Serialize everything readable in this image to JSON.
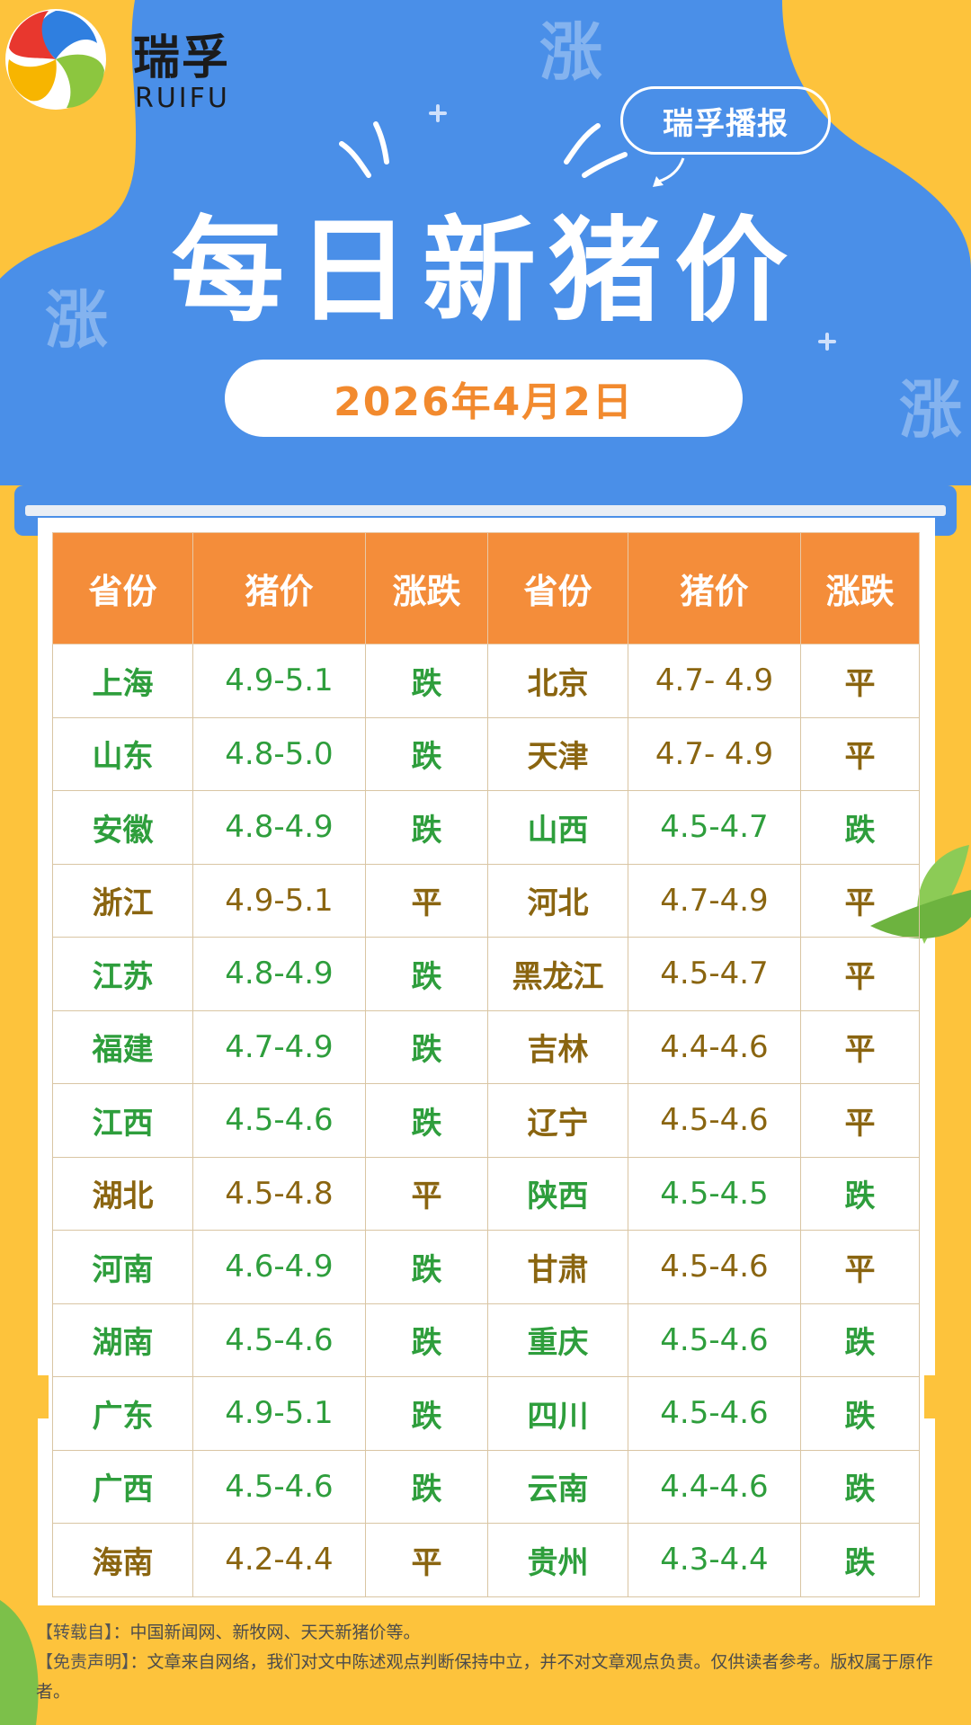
{
  "brand": {
    "name_cn": "瑞孚",
    "name_en": "RUIFU"
  },
  "header": {
    "bubble": "瑞孚播报",
    "title": "每日新猪价",
    "date": "2026年4月2日",
    "deco": "涨"
  },
  "colors": {
    "blue": "#4A8FE8",
    "yellow": "#FDC33C",
    "orange": "#F48D3A",
    "green": "#2E9E3C",
    "brown": "#8A6510"
  },
  "table": {
    "headers": [
      "省份",
      "猪价",
      "涨跌",
      "省份",
      "猪价",
      "涨跌"
    ],
    "rows": [
      [
        {
          "t": "上海",
          "c": "green"
        },
        {
          "t": "4.9-5.1",
          "c": "green"
        },
        {
          "t": "跌",
          "c": "green"
        },
        {
          "t": "北京",
          "c": "brown"
        },
        {
          "t": "4.7- 4.9",
          "c": "brown"
        },
        {
          "t": "平",
          "c": "brown"
        }
      ],
      [
        {
          "t": "山东",
          "c": "green"
        },
        {
          "t": "4.8-5.0",
          "c": "green"
        },
        {
          "t": "跌",
          "c": "green"
        },
        {
          "t": "天津",
          "c": "brown"
        },
        {
          "t": "4.7- 4.9",
          "c": "brown"
        },
        {
          "t": "平",
          "c": "brown"
        }
      ],
      [
        {
          "t": "安徽",
          "c": "green"
        },
        {
          "t": "4.8-4.9",
          "c": "green"
        },
        {
          "t": "跌",
          "c": "green"
        },
        {
          "t": "山西",
          "c": "green"
        },
        {
          "t": "4.5-4.7",
          "c": "green"
        },
        {
          "t": "跌",
          "c": "green"
        }
      ],
      [
        {
          "t": "浙江",
          "c": "brown"
        },
        {
          "t": "4.9-5.1",
          "c": "brown"
        },
        {
          "t": "平",
          "c": "brown"
        },
        {
          "t": "河北",
          "c": "brown"
        },
        {
          "t": "4.7-4.9",
          "c": "brown"
        },
        {
          "t": "平",
          "c": "brown"
        }
      ],
      [
        {
          "t": "江苏",
          "c": "green"
        },
        {
          "t": "4.8-4.9",
          "c": "green"
        },
        {
          "t": "跌",
          "c": "green"
        },
        {
          "t": "黑龙江",
          "c": "brown"
        },
        {
          "t": "4.5-4.7",
          "c": "brown"
        },
        {
          "t": "平",
          "c": "brown"
        }
      ],
      [
        {
          "t": "福建",
          "c": "green"
        },
        {
          "t": "4.7-4.9",
          "c": "green"
        },
        {
          "t": "跌",
          "c": "green"
        },
        {
          "t": "吉林",
          "c": "brown"
        },
        {
          "t": "4.4-4.6",
          "c": "brown"
        },
        {
          "t": "平",
          "c": "brown"
        }
      ],
      [
        {
          "t": "江西",
          "c": "green"
        },
        {
          "t": "4.5-4.6",
          "c": "green"
        },
        {
          "t": "跌",
          "c": "green"
        },
        {
          "t": "辽宁",
          "c": "brown"
        },
        {
          "t": "4.5-4.6",
          "c": "brown"
        },
        {
          "t": "平",
          "c": "brown"
        }
      ],
      [
        {
          "t": "湖北",
          "c": "brown"
        },
        {
          "t": "4.5-4.8",
          "c": "brown"
        },
        {
          "t": "平",
          "c": "brown"
        },
        {
          "t": "陕西",
          "c": "green"
        },
        {
          "t": "4.5-4.5",
          "c": "green"
        },
        {
          "t": "跌",
          "c": "green"
        }
      ],
      [
        {
          "t": "河南",
          "c": "green"
        },
        {
          "t": "4.6-4.9",
          "c": "green"
        },
        {
          "t": "跌",
          "c": "green"
        },
        {
          "t": "甘肃",
          "c": "brown"
        },
        {
          "t": "4.5-4.6",
          "c": "brown"
        },
        {
          "t": "平",
          "c": "brown"
        }
      ],
      [
        {
          "t": "湖南",
          "c": "green"
        },
        {
          "t": "4.5-4.6",
          "c": "green"
        },
        {
          "t": "跌",
          "c": "green"
        },
        {
          "t": "重庆",
          "c": "green"
        },
        {
          "t": "4.5-4.6",
          "c": "green"
        },
        {
          "t": "跌",
          "c": "green"
        }
      ],
      [
        {
          "t": "广东",
          "c": "green"
        },
        {
          "t": "4.9-5.1",
          "c": "green"
        },
        {
          "t": "跌",
          "c": "green"
        },
        {
          "t": "四川",
          "c": "green"
        },
        {
          "t": "4.5-4.6",
          "c": "green"
        },
        {
          "t": "跌",
          "c": "green"
        }
      ],
      [
        {
          "t": "广西",
          "c": "green"
        },
        {
          "t": "4.5-4.6",
          "c": "green"
        },
        {
          "t": "跌",
          "c": "green"
        },
        {
          "t": "云南",
          "c": "green"
        },
        {
          "t": "4.4-4.6",
          "c": "green"
        },
        {
          "t": "跌",
          "c": "green"
        }
      ],
      [
        {
          "t": "海南",
          "c": "brown"
        },
        {
          "t": "4.2-4.4",
          "c": "brown"
        },
        {
          "t": "平",
          "c": "brown"
        },
        {
          "t": "贵州",
          "c": "green"
        },
        {
          "t": "4.3-4.4",
          "c": "green"
        },
        {
          "t": "跌",
          "c": "green"
        }
      ]
    ]
  },
  "footer": {
    "source_label": "【转载自】",
    "source_text": "：中国新闻网、新牧网、天天新猪价等。",
    "disclaimer_label": "【免责声明】",
    "disclaimer_text": "：文章来自网络，我们对文中陈述观点判断保持中立，并不对文章观点负责。仅供读者参考。版权属于原作者。"
  }
}
